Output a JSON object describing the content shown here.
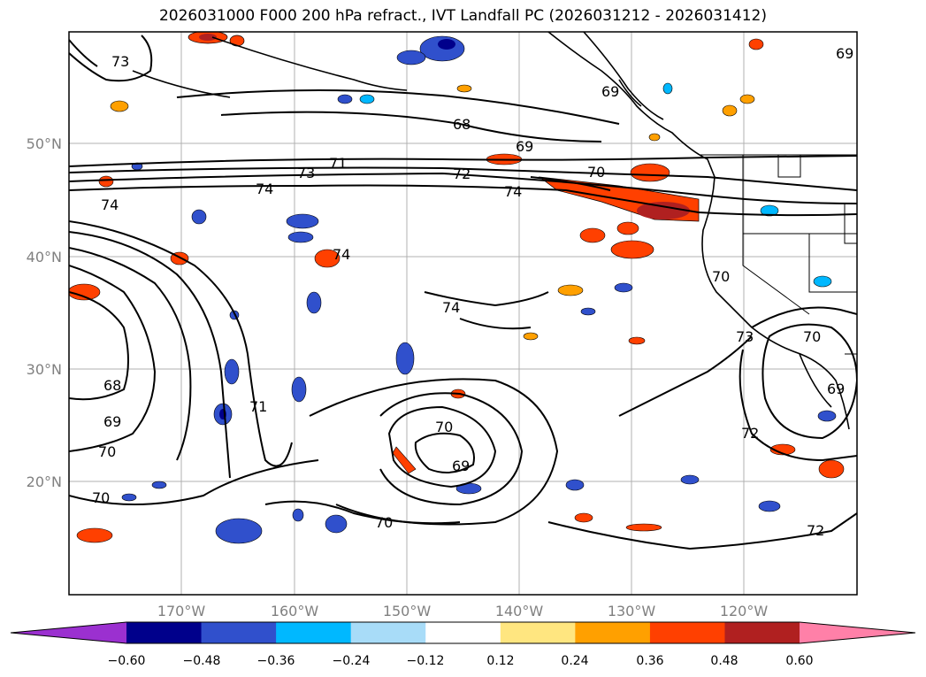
{
  "title": "2026031000 F000 200 hPa refract., IVT Landfall PC (2026031212 - 2026031412)",
  "map": {
    "region": "North Pacific and western North America",
    "lon_labels": [
      "170°W",
      "160°W",
      "150°W",
      "140°W",
      "130°W",
      "120°W"
    ],
    "lat_labels": [
      "50°N",
      "40°N",
      "30°N",
      "20°N"
    ],
    "contour_labels": [
      "73",
      "69",
      "68",
      "69",
      "71",
      "73",
      "72",
      "70",
      "74",
      "74",
      "74",
      "74",
      "74",
      "71",
      "68",
      "69",
      "70",
      "70",
      "70",
      "70",
      "69",
      "70",
      "73",
      "70",
      "69",
      "72",
      "72",
      "69"
    ]
  },
  "colorbar": {
    "ticks": [
      "−0.60",
      "−0.48",
      "−0.36",
      "−0.24",
      "−0.12",
      "0.12",
      "0.24",
      "0.36",
      "0.48",
      "0.60"
    ],
    "colors": [
      "#9b30d0",
      "#00008b",
      "#3050cc",
      "#00b8ff",
      "#a8dcf8",
      "#ffffff",
      "#ffe680",
      "#ffa000",
      "#ff4000",
      "#b02020",
      "#ff80a8"
    ]
  },
  "colors": {
    "grid": "#b0b0b0",
    "contour": "#000000",
    "coast": "#000000"
  }
}
